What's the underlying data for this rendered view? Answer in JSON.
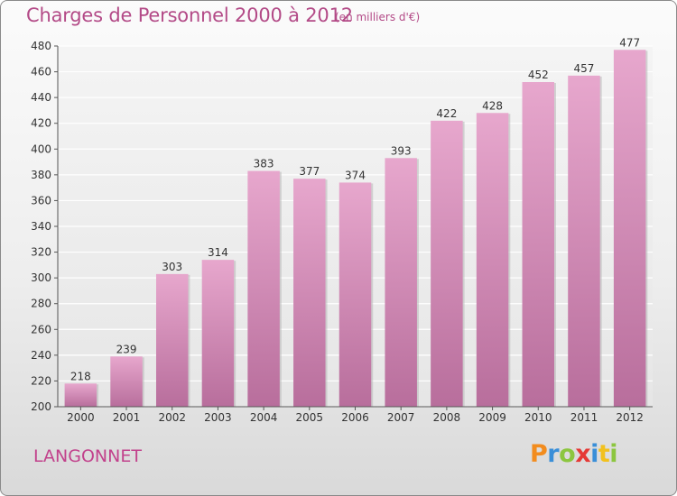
{
  "header": {
    "title": "Charges de Personnel 2000 à 2012",
    "unit_note": "(en milliers d'€)"
  },
  "footer": {
    "commune": "LANGONNET",
    "logo": {
      "letters": [
        "P",
        "r",
        "o",
        "x",
        "i",
        "t",
        "i"
      ],
      "colors": [
        "#f28c1e",
        "#3a8fd8",
        "#8cc63f",
        "#e53935",
        "#3a8fd8",
        "#f2c11e",
        "#8cc63f"
      ]
    }
  },
  "colors": {
    "bar_top": "#e7a7cd",
    "bar_bottom": "#b86e9c",
    "title": "#b34a87",
    "commune": "#c2428c"
  },
  "chart_data": {
    "type": "bar",
    "categories": [
      "2000",
      "2001",
      "2002",
      "2003",
      "2004",
      "2005",
      "2006",
      "2007",
      "2008",
      "2009",
      "2010",
      "2011",
      "2012"
    ],
    "values": [
      218,
      239,
      303,
      314,
      383,
      377,
      374,
      393,
      422,
      428,
      452,
      457,
      477
    ],
    "title": "Charges de Personnel 2000 à 2012",
    "ylim": [
      200,
      480
    ],
    "yticks": [
      200,
      220,
      240,
      260,
      280,
      300,
      320,
      340,
      360,
      380,
      400,
      420,
      440,
      460,
      480
    ],
    "grid": true,
    "legend": "none"
  }
}
